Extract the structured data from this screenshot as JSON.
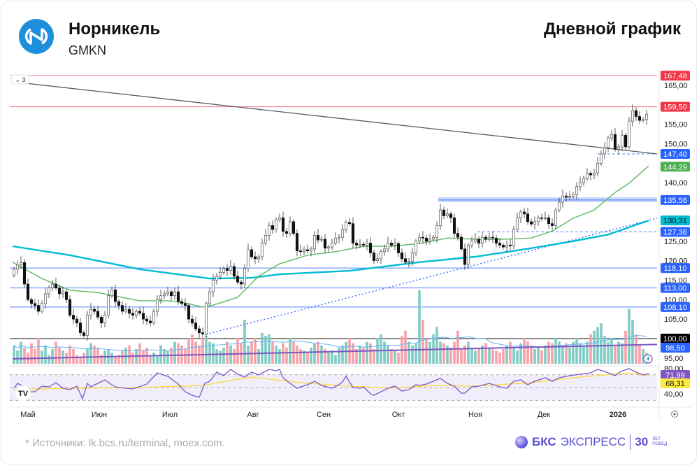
{
  "header": {
    "company": "Норникель",
    "ticker": "GMKN",
    "period": "Дневной график"
  },
  "footer": {
    "source": "*  Источники: lk.bcs.ru/terminal, moex.com.",
    "brand_bold": "БКС",
    "brand_rest": "ЭКСПРЕСС",
    "brand_years": "30",
    "brand_small": "ЛЕТ ПОБЕД"
  },
  "toolbar": {
    "collapse_label": "⌄ 3"
  },
  "colors": {
    "up": "#ffffff",
    "down": "#111111",
    "ma_fast": "#66bb6a",
    "ma_slow": "#00bcd4",
    "resistance": "#f23645",
    "support": "#2962ff",
    "trend": "#555a66",
    "rsi": "#7e57c2",
    "rsi_ma": "#fdd835",
    "vol_up": "#80cbc4",
    "vol_down": "#f7a1a8"
  },
  "chart_data": {
    "type": "candlestick",
    "title": "",
    "y_ticks": [
      "165,00",
      "155,00",
      "150,00",
      "140,00",
      "125,00",
      "120,00",
      "115,00",
      "110,00",
      "105,00",
      "95,00"
    ],
    "y_tick_values": [
      165,
      155,
      150,
      140,
      125,
      120,
      115,
      110,
      105,
      95
    ],
    "ylim": [
      93,
      170
    ],
    "x_ticks": [
      {
        "label": "Май",
        "at_index": 4
      },
      {
        "label": "Июн",
        "at_index": 24.4
      },
      {
        "label": "Июл",
        "at_index": 44.6
      },
      {
        "label": "Авг",
        "at_index": 68.4
      },
      {
        "label": "Сен",
        "at_index": 88.6
      },
      {
        "label": "Окт",
        "at_index": 110
      },
      {
        "label": "Ноя",
        "at_index": 132
      },
      {
        "label": "Дек",
        "at_index": 151.6
      },
      {
        "label": "2026",
        "at_index": 172.8
      }
    ],
    "closes": [
      117.8,
      119,
      119.5,
      114,
      110,
      109,
      108.5,
      107,
      109,
      111.5,
      113,
      114,
      113,
      111.5,
      112,
      110,
      106,
      105,
      104,
      101.5,
      100.8,
      106,
      107.5,
      107,
      105.5,
      104,
      106,
      111,
      112.5,
      109.5,
      108.5,
      107,
      107.5,
      106.5,
      106,
      107,
      106.5,
      105,
      104.5,
      104,
      107,
      110,
      111,
      111.5,
      112,
      111,
      112,
      109.5,
      109,
      108.5,
      105,
      104,
      102.5,
      101.5,
      101.2,
      109,
      112,
      115,
      116,
      117,
      118,
      117.5,
      118.5,
      116,
      114.5,
      114,
      118,
      122.8,
      121,
      120.5,
      121,
      124.5,
      126.5,
      129,
      128,
      130.5,
      131,
      127.5,
      127,
      130,
      127,
      122.5,
      122.3,
      122.8,
      122.5,
      123,
      126.5,
      125.3,
      125.5,
      123.2,
      123.5,
      124.5,
      125.8,
      126,
      128,
      129.8,
      129.5,
      124.5,
      124,
      124.2,
      124,
      124.5,
      122,
      120,
      120.5,
      122.3,
      123,
      124.5,
      124,
      124.4,
      122,
      120.5,
      119.6,
      119.8,
      122,
      125,
      126,
      125.8,
      125,
      125.5,
      126,
      129,
      133,
      131.5,
      132,
      131,
      127,
      126,
      123,
      119,
      124,
      125,
      125.5,
      124.5,
      126,
      125.5,
      126,
      125.8,
      124.5,
      124,
      123.5,
      124,
      123.8,
      128,
      131,
      132.5,
      132,
      130,
      129.4,
      130,
      131,
      130.9,
      131,
      129.5,
      129,
      133,
      135,
      136.6,
      136.3,
      136.5,
      137,
      139,
      140,
      141,
      142.4,
      142,
      142.5,
      145,
      147.4,
      149,
      151.5,
      152.4,
      148.6,
      149.2,
      152.2,
      149.2,
      155.8,
      158.5,
      157,
      156,
      156.2,
      157.6
    ],
    "volume": [
      25,
      18,
      30,
      22,
      15,
      28,
      20,
      35,
      18,
      25,
      12,
      20,
      30,
      22,
      18,
      15,
      25,
      20,
      12,
      10,
      15,
      20,
      28,
      25,
      22,
      12,
      18,
      20,
      15,
      10,
      12,
      18,
      22,
      25,
      15,
      20,
      28,
      18,
      22,
      10,
      15,
      12,
      25,
      20,
      18,
      22,
      30,
      28,
      25,
      20,
      35,
      40,
      30,
      25,
      35,
      38,
      30,
      28,
      20,
      18,
      22,
      30,
      25,
      20,
      35,
      28,
      60,
      25,
      30,
      35,
      20,
      42,
      38,
      40,
      30,
      25,
      20,
      28,
      22,
      35,
      30,
      25,
      20,
      18,
      15,
      22,
      28,
      30,
      25,
      20,
      15,
      18,
      12,
      22,
      25,
      30,
      35,
      28,
      20,
      25,
      22,
      30,
      28,
      20,
      35,
      40,
      30,
      25,
      20,
      18,
      15,
      38,
      45,
      30,
      25,
      28,
      100,
      60,
      35,
      30,
      40,
      50,
      30,
      28,
      25,
      22,
      30,
      45,
      20,
      25,
      30,
      22,
      18,
      20,
      25,
      28,
      22,
      20,
      18,
      15,
      20,
      25,
      30,
      22,
      18,
      28,
      35,
      30,
      25,
      20,
      22,
      18,
      25,
      30,
      28,
      35,
      30,
      25,
      28,
      22,
      30,
      35,
      28,
      25,
      30,
      40,
      45,
      50,
      55,
      38,
      30,
      35,
      25,
      30,
      28,
      45,
      75,
      60,
      40,
      25,
      20,
      15
    ],
    "ma_fast": [
      [
        -0.4,
        119.6
      ],
      [
        8,
        115.4
      ],
      [
        16,
        112.4
      ],
      [
        24,
        111.8
      ],
      [
        36,
        109.7
      ],
      [
        44,
        109.7
      ],
      [
        48,
        109.3
      ],
      [
        54,
        108.1
      ],
      [
        57,
        108.6
      ],
      [
        64,
        110.6
      ],
      [
        70,
        116
      ],
      [
        76,
        119.2
      ],
      [
        84,
        121.4
      ],
      [
        92,
        122.3
      ],
      [
        100,
        123.7
      ],
      [
        108,
        123.7
      ],
      [
        116,
        124.4
      ],
      [
        124,
        125.8
      ],
      [
        132,
        125.5
      ],
      [
        140,
        125.5
      ],
      [
        148,
        125.8
      ],
      [
        154,
        127.6
      ],
      [
        160,
        130.9
      ],
      [
        166,
        133
      ],
      [
        172,
        137.5
      ],
      [
        176,
        139.9
      ],
      [
        181.6,
        144.29
      ]
    ],
    "ma_slow": [
      [
        -0.4,
        123.7
      ],
      [
        16,
        121.4
      ],
      [
        36,
        117.8
      ],
      [
        56,
        115.4
      ],
      [
        68,
        115.6
      ],
      [
        76,
        116.5
      ],
      [
        96,
        117.4
      ],
      [
        116,
        119.6
      ],
      [
        132,
        121
      ],
      [
        148,
        123.2
      ],
      [
        160,
        125
      ],
      [
        170,
        126.7
      ],
      [
        181.6,
        130.31
      ]
    ],
    "levels": [
      {
        "value": 167.48,
        "label": "167,48",
        "kind": "resistance"
      },
      {
        "value": 159.5,
        "label": "159,50",
        "kind": "resistance"
      },
      {
        "value": 147.4,
        "label": "147,40",
        "kind": "support",
        "style": "dashed",
        "from_index": 167
      },
      {
        "value": 135.56,
        "label": "135,56",
        "kind": "support",
        "style": "band",
        "from_index": 121.4
      },
      {
        "value": 127.38,
        "label": "127,38",
        "kind": "support",
        "style": "dashed",
        "from_index": 132.6
      },
      {
        "value": 118.1,
        "label": "118,10",
        "kind": "support"
      },
      {
        "value": 113.0,
        "label": "113,00",
        "kind": "support"
      },
      {
        "value": 108.1,
        "label": "108,10",
        "kind": "support"
      },
      {
        "value": 100.0,
        "label": "100,00",
        "kind": "black"
      }
    ],
    "indicator_badges": [
      {
        "label": "144,29",
        "value": 144.29,
        "series": "ma_fast"
      },
      {
        "label": "130,31",
        "value": 130.31,
        "series": "ma_slow"
      },
      {
        "label": "98,50",
        "value": 98.5,
        "series": "purple_line"
      }
    ],
    "trendlines": [
      {
        "name": "descending",
        "from": [
          -0.4,
          165.9
        ],
        "to": [
          184,
          147.4
        ],
        "style": "solid"
      },
      {
        "name": "ascending",
        "from": [
          55,
          101.1
        ],
        "to": [
          184,
          130.9
        ],
        "style": "dotted"
      },
      {
        "name": "purple",
        "from": [
          -0.4,
          94.8
        ],
        "to": [
          184,
          98.5
        ],
        "style": "solid"
      }
    ],
    "rsi": {
      "ticks": [
        "80,00",
        "40,00"
      ],
      "tick_values": [
        80,
        40
      ],
      "bands": [
        70,
        50,
        30
      ],
      "value_label": "71,99",
      "ma_label": "68,31",
      "line": [
        [
          0,
          48.9
        ],
        [
          1,
          56.6
        ],
        [
          3,
          51.1
        ],
        [
          4,
          43.4
        ],
        [
          6,
          43.4
        ],
        [
          8,
          52.2
        ],
        [
          10,
          51.1
        ],
        [
          12,
          57.7
        ],
        [
          14,
          48.9
        ],
        [
          16,
          46.7
        ],
        [
          18,
          52.2
        ],
        [
          19.6,
          32.5
        ],
        [
          21,
          56.6
        ],
        [
          22,
          51.1
        ],
        [
          24,
          56.6
        ],
        [
          26,
          62
        ],
        [
          28,
          54.4
        ],
        [
          29,
          51.1
        ],
        [
          32,
          48.9
        ],
        [
          34,
          47.8
        ],
        [
          38,
          55.5
        ],
        [
          41,
          73
        ],
        [
          44,
          67.5
        ],
        [
          47,
          55.5
        ],
        [
          49,
          43.4
        ],
        [
          51,
          38
        ],
        [
          53,
          34.7
        ],
        [
          54.6,
          56.6
        ],
        [
          56,
          59.8
        ],
        [
          57,
          66.4
        ],
        [
          58,
          74
        ],
        [
          60,
          68.6
        ],
        [
          62,
          78.4
        ],
        [
          64,
          70.8
        ],
        [
          66,
          66.4
        ],
        [
          68,
          74
        ],
        [
          70,
          69.7
        ],
        [
          73,
          78.4
        ],
        [
          75,
          76.2
        ],
        [
          76,
          78.4
        ],
        [
          77,
          65.3
        ],
        [
          79,
          56.6
        ],
        [
          81,
          48.9
        ],
        [
          82,
          51.1
        ],
        [
          84,
          54.4
        ],
        [
          86,
          59.8
        ],
        [
          88,
          53.3
        ],
        [
          91,
          48.9
        ],
        [
          93,
          54.4
        ],
        [
          94,
          58.8
        ],
        [
          95,
          67.5
        ],
        [
          97,
          50
        ],
        [
          99,
          48.9
        ],
        [
          100,
          51.1
        ],
        [
          102,
          40.2
        ],
        [
          103,
          38
        ],
        [
          105,
          43.4
        ],
        [
          107,
          48.9
        ],
        [
          109,
          52.2
        ],
        [
          111,
          44.5
        ],
        [
          113,
          46.7
        ],
        [
          115,
          54.4
        ],
        [
          116,
          53.3
        ],
        [
          118,
          55.5
        ],
        [
          120,
          59.8
        ],
        [
          122,
          64.2
        ],
        [
          124,
          56.6
        ],
        [
          126,
          52.2
        ],
        [
          128,
          41.3
        ],
        [
          129,
          41.3
        ],
        [
          131,
          51.1
        ],
        [
          133,
          52.2
        ],
        [
          136,
          56.6
        ],
        [
          139,
          51.1
        ],
        [
          141,
          48.9
        ],
        [
          143,
          59.8
        ],
        [
          145,
          62
        ],
        [
          147,
          54.4
        ],
        [
          149,
          59.8
        ],
        [
          152,
          65.3
        ],
        [
          154,
          59.8
        ],
        [
          156,
          65.3
        ],
        [
          159,
          68.6
        ],
        [
          162,
          70.8
        ],
        [
          165,
          73
        ],
        [
          167,
          78.4
        ],
        [
          168.4,
          76.2
        ],
        [
          170,
          73
        ],
        [
          172,
          68.6
        ],
        [
          173.6,
          75.1
        ],
        [
          176,
          79.5
        ],
        [
          178,
          74
        ],
        [
          180,
          69.7
        ],
        [
          181.6,
          71.99
        ]
      ],
      "ma": [
        [
          0,
          46.7
        ],
        [
          16,
          48.9
        ],
        [
          36,
          50
        ],
        [
          54,
          53.3
        ],
        [
          64,
          63.1
        ],
        [
          68,
          66.4
        ],
        [
          82,
          57.7
        ],
        [
          96,
          52.2
        ],
        [
          108,
          48.9
        ],
        [
          120,
          53.3
        ],
        [
          132,
          52.2
        ],
        [
          148,
          57.7
        ],
        [
          162,
          66.4
        ],
        [
          176,
          73
        ],
        [
          181.6,
          68.31
        ]
      ]
    }
  }
}
